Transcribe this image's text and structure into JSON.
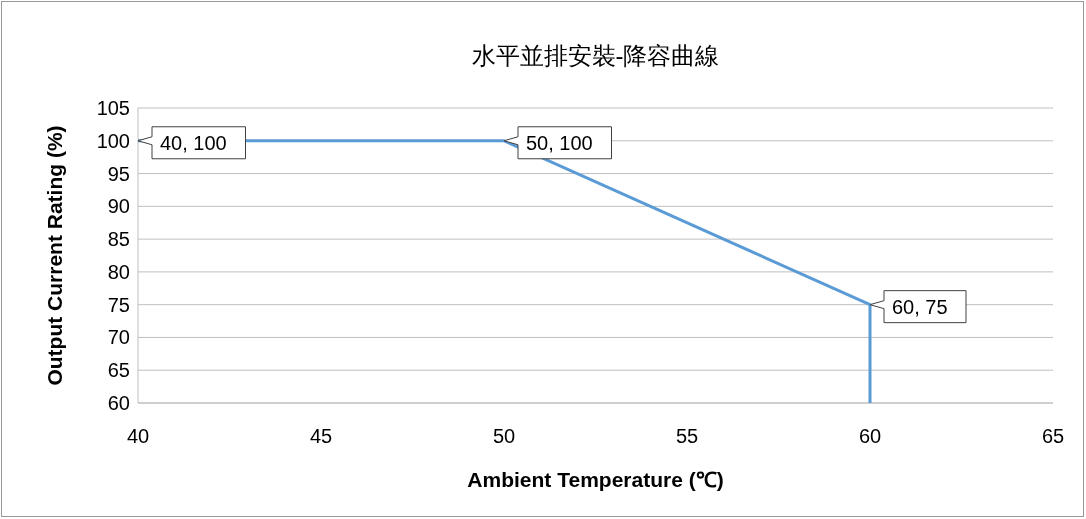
{
  "chart_data": {
    "type": "line",
    "title": "水平並排安裝-降容曲線",
    "xlabel": "Ambient Temperature (℃)",
    "ylabel": "Output Current Rating (%)",
    "x": [
      40,
      50,
      60,
      60
    ],
    "series": [
      {
        "color": "#5b9bd5",
        "values": [
          100,
          100,
          75,
          60
        ],
        "value_labels": [
          "40, 100",
          "50, 100",
          "60, 75",
          null
        ]
      }
    ],
    "xlim": [
      40,
      65
    ],
    "xticks": [
      40,
      45,
      50,
      55,
      60,
      65
    ],
    "ylim": [
      60,
      105
    ],
    "yticks": [
      60,
      65,
      70,
      75,
      80,
      85,
      90,
      95,
      100,
      105
    ],
    "grid": "y",
    "marker": "none",
    "line_style": "solid"
  }
}
